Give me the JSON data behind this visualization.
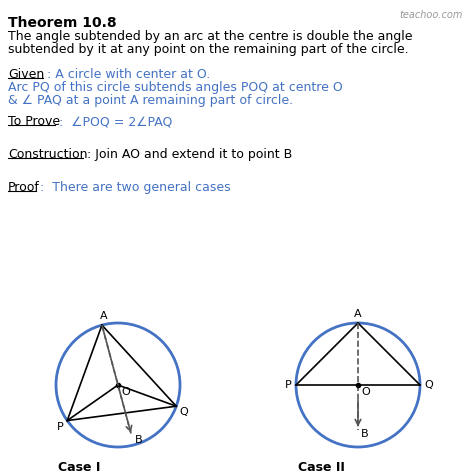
{
  "bg_color": "#ffffff",
  "title": "Theorem 10.8",
  "watermark": "teachoo.com",
  "theorem_text1": "The angle subtended by an arc at the centre is double the angle",
  "theorem_text2": "subtended by it at any point on the remaining part of the circle.",
  "given_label": "Given",
  "given_text": " : A circle with center at O.",
  "given_text2": "Arc PQ of this circle subtends angles POQ at centre O",
  "given_text3": "& ∠ PAQ at a point A remaining part of circle.",
  "toprove_label": "To Prove",
  "toprove_text": " :  ∠POQ = 2∠PAQ",
  "construction_label": "Construction",
  "construction_text": " : Join AO and extend it to point B",
  "proof_label": "Proof",
  "proof_text": " :  There are two general cases",
  "blue_color": "#4472C4",
  "black_color": "#000000",
  "gray_color": "#555555",
  "case1_label": "Case I",
  "case2_label": "Case II",
  "circle_color": "#4472C4"
}
